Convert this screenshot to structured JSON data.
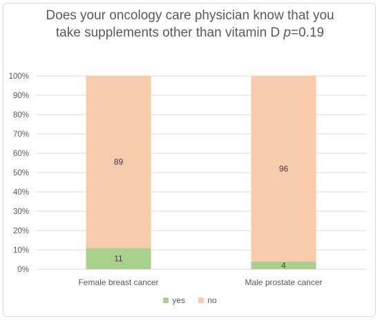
{
  "chart_data": {
    "type": "bar",
    "stacked": true,
    "title_main": "Does your oncology care physician know that you",
    "title_line2": "take supplements other than vitamin D",
    "title_p_symbol": "p",
    "title_p_value": "=0.19",
    "categories": [
      "Female breast cancer",
      "Male prostate cancer"
    ],
    "series": [
      {
        "name": "yes",
        "values": [
          11,
          4
        ],
        "color": "#a9d18e"
      },
      {
        "name": "no",
        "values": [
          89,
          96
        ],
        "color": "#f8cbad"
      }
    ],
    "ylim": [
      0,
      100
    ],
    "y_ticks": [
      "0%",
      "10%",
      "20%",
      "30%",
      "40%",
      "50%",
      "60%",
      "70%",
      "80%",
      "90%",
      "100%"
    ],
    "grid": true,
    "legend_position": "bottom"
  }
}
